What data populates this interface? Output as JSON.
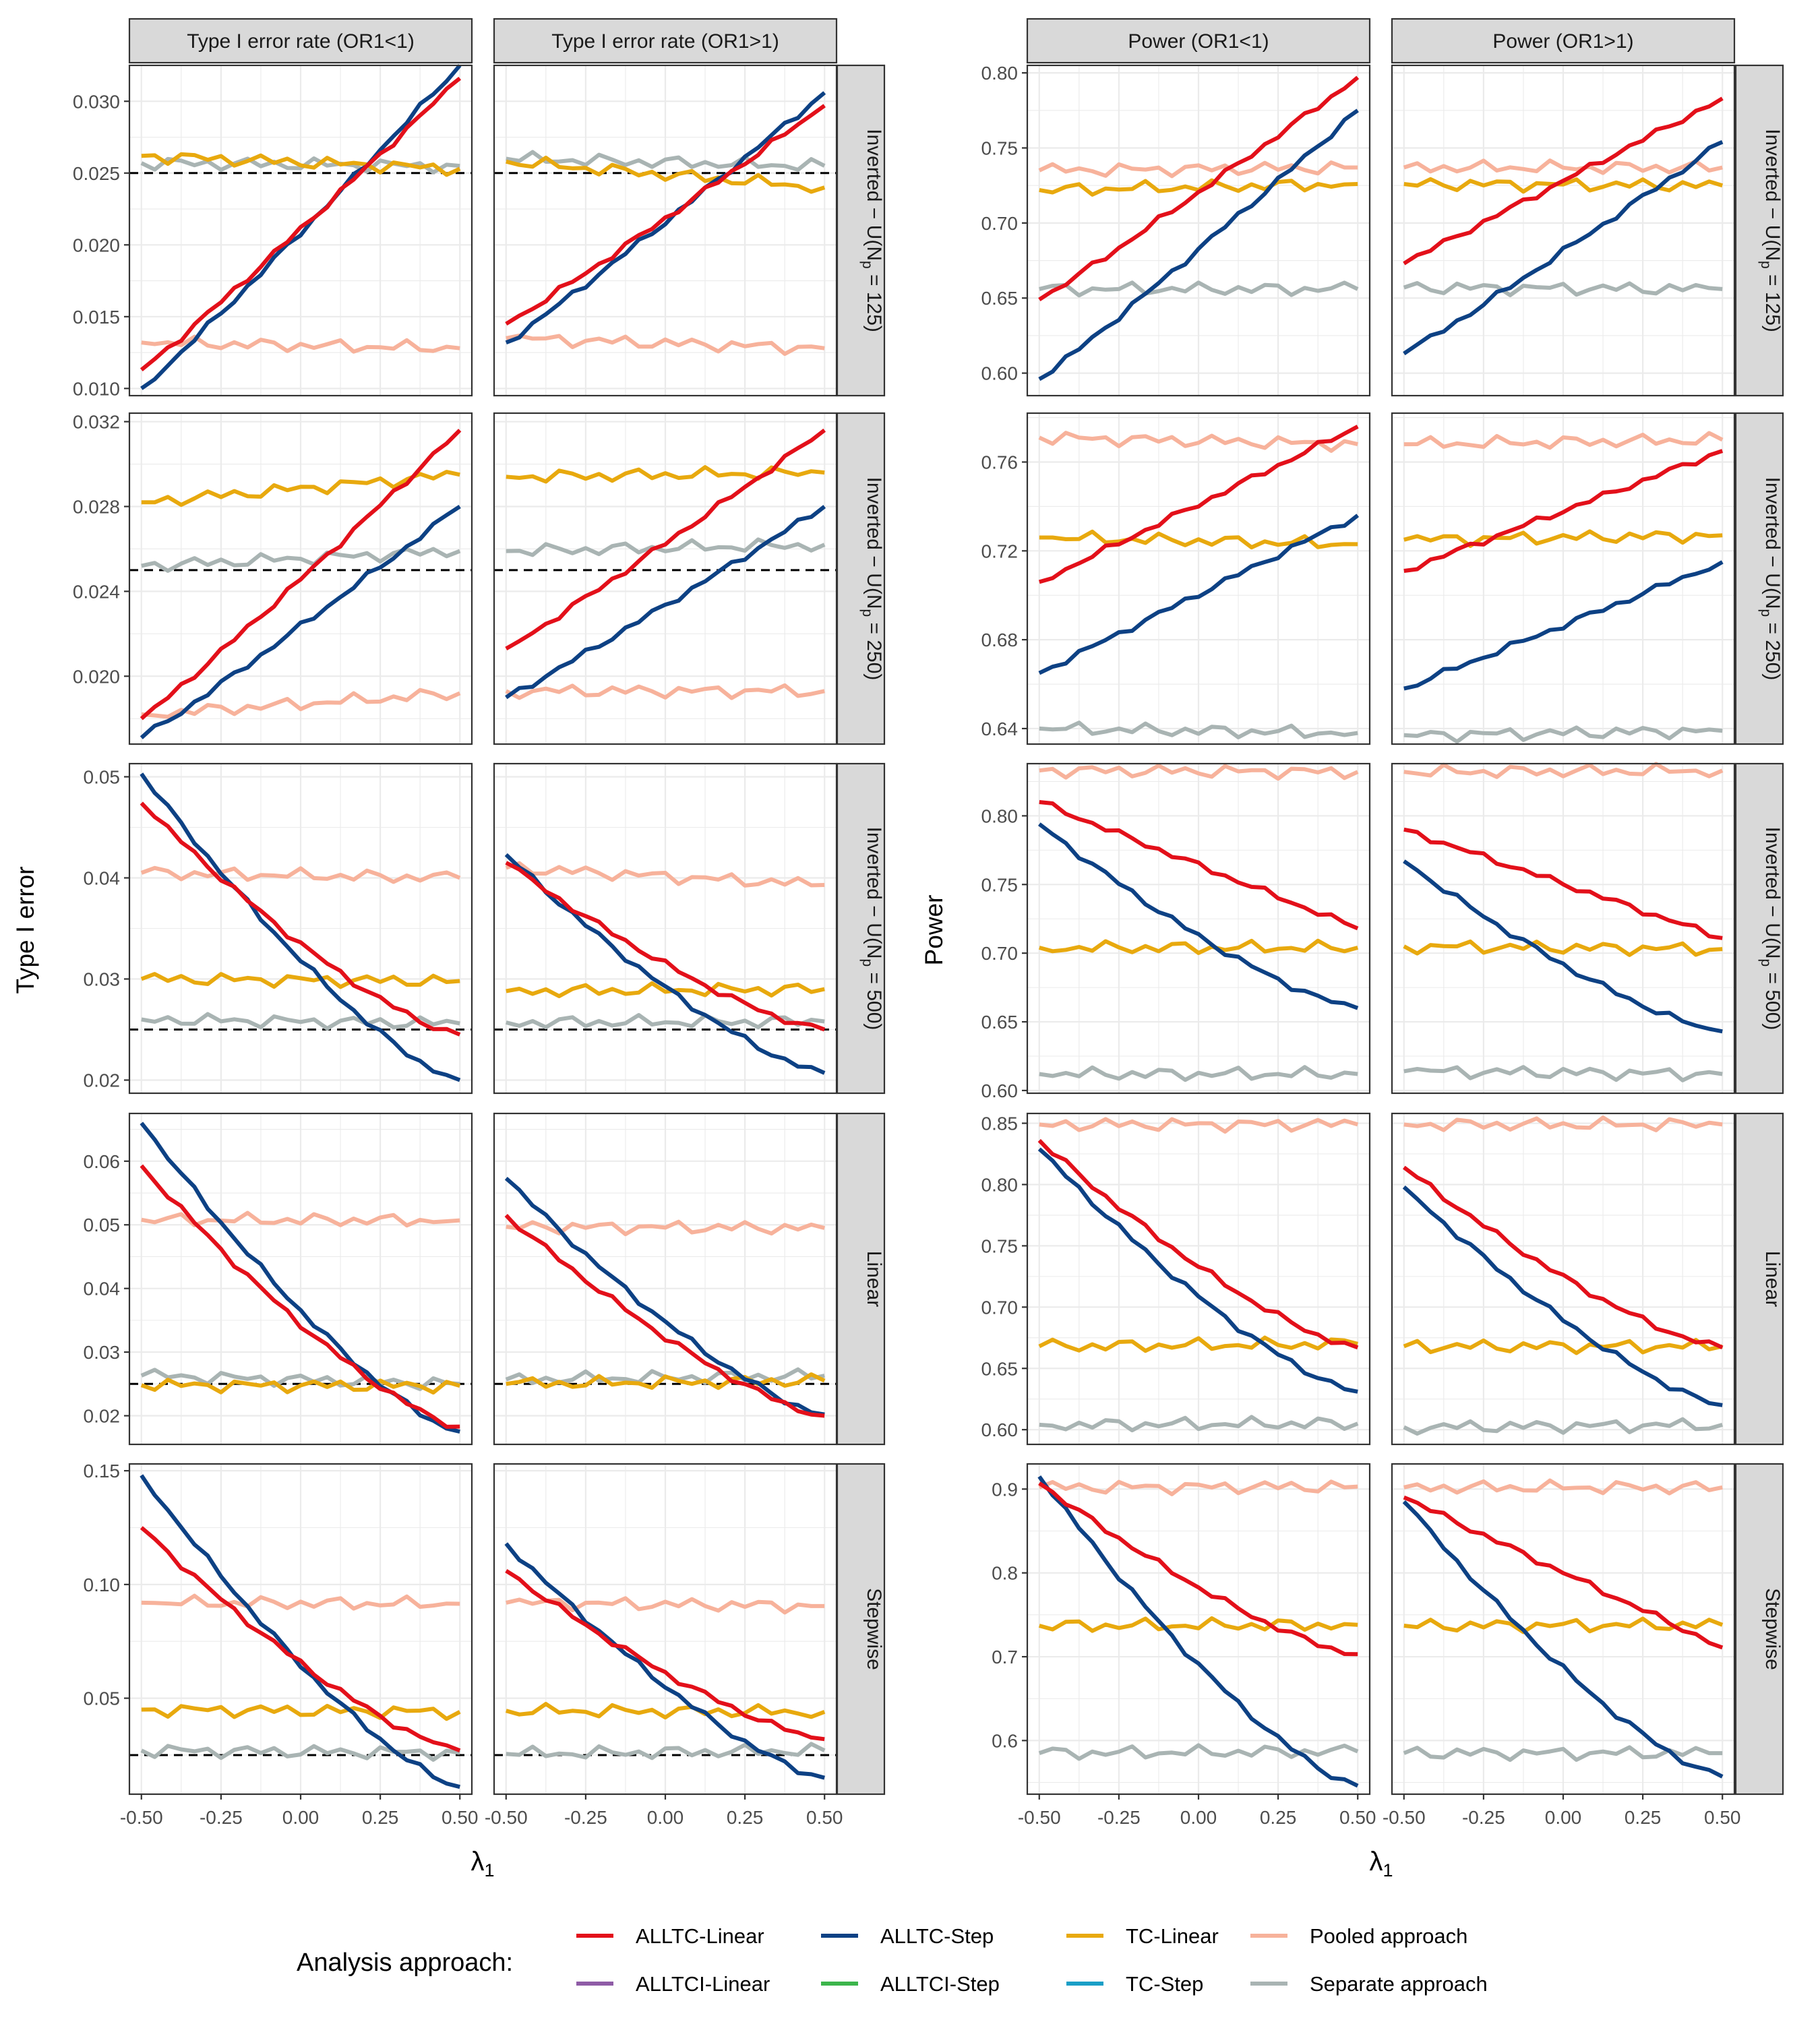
{
  "figure": {
    "y_titles": [
      "Type I error",
      "Power"
    ],
    "x_title": "λ",
    "x_title_sub": "1",
    "legend_title": "Analysis approach:",
    "x_ticks": [
      "-0.50",
      "-0.25",
      "0.00",
      "0.25",
      "0.50"
    ],
    "row_strips": [
      {
        "main": "Inverted − U(N",
        "sub": "p",
        "tail": " = 125)"
      },
      {
        "main": "Inverted − U(N",
        "sub": "p",
        "tail": " = 250)"
      },
      {
        "main": "Inverted − U(N",
        "sub": "p",
        "tail": " = 500)"
      },
      {
        "main": "Linear",
        "sub": "",
        "tail": ""
      },
      {
        "main": "Stepwise",
        "sub": "",
        "tail": ""
      }
    ]
  },
  "legend": [
    {
      "label": "ALLTC-Linear",
      "color": "#e3101a"
    },
    {
      "label": "ALLTC-Step",
      "color": "#0d4184"
    },
    {
      "label": "TC-Linear",
      "color": "#e8a90e"
    },
    {
      "label": "Pooled approach",
      "color": "#f7b29b"
    },
    {
      "label": "ALLTCI-Linear",
      "color": "#8f5ca6"
    },
    {
      "label": "ALLTCI-Step",
      "color": "#3cb54b"
    },
    {
      "label": "TC-Step",
      "color": "#1a9fc7"
    },
    {
      "label": "Separate approach",
      "color": "#a9b4b3"
    }
  ],
  "chart_data": [
    {
      "type": "line",
      "title": "Type I error rate (OR1<1)",
      "row": "Inverted − U(Np = 125)",
      "xlabel": "λ1",
      "ylabel": "Type I error",
      "xlim": [
        -0.5,
        0.5
      ],
      "ylim": [
        0.0095,
        0.0325
      ],
      "yticks": [
        "0.010",
        "0.015",
        "0.020",
        "0.025",
        "0.030"
      ],
      "reference_line": 0.025,
      "series": [
        {
          "name": "ALLTC-Linear",
          "start": 0.0113,
          "end": 0.0316
        },
        {
          "name": "ALLTC-Step",
          "start": 0.01,
          "end": 0.0325
        },
        {
          "name": "TC-Linear",
          "start": 0.0262,
          "end": 0.0253
        },
        {
          "name": "Pooled approach",
          "start": 0.0132,
          "end": 0.0128
        },
        {
          "name": "Separate approach",
          "start": 0.0257,
          "end": 0.0255
        }
      ]
    },
    {
      "type": "line",
      "title": "Type I error rate (OR1>1)",
      "row": "Inverted − U(Np = 125)",
      "xlim": [
        -0.5,
        0.5
      ],
      "ylim": [
        0.0095,
        0.0325
      ],
      "yticks": [
        "0.010",
        "0.015",
        "0.020",
        "0.025",
        "0.030"
      ],
      "reference_line": 0.025,
      "series": [
        {
          "name": "ALLTC-Linear",
          "start": 0.0145,
          "end": 0.0297
        },
        {
          "name": "ALLTC-Step",
          "start": 0.0132,
          "end": 0.0306
        },
        {
          "name": "TC-Linear",
          "start": 0.0258,
          "end": 0.024
        },
        {
          "name": "Pooled approach",
          "start": 0.0135,
          "end": 0.0128
        },
        {
          "name": "Separate approach",
          "start": 0.026,
          "end": 0.0255
        }
      ]
    },
    {
      "type": "line",
      "title": "Power (OR1<1)",
      "row": "Inverted − U(Np = 125)",
      "xlabel": "λ1",
      "ylabel": "Power",
      "xlim": [
        -0.5,
        0.5
      ],
      "ylim": [
        0.585,
        0.805
      ],
      "yticks": [
        "0.60",
        "0.65",
        "0.70",
        "0.75",
        "0.80"
      ],
      "series": [
        {
          "name": "ALLTC-Linear",
          "start": 0.649,
          "end": 0.797
        },
        {
          "name": "ALLTC-Step",
          "start": 0.596,
          "end": 0.775
        },
        {
          "name": "TC-Linear",
          "start": 0.722,
          "end": 0.726
        },
        {
          "name": "Pooled approach",
          "start": 0.735,
          "end": 0.737
        },
        {
          "name": "Separate approach",
          "start": 0.656,
          "end": 0.656
        }
      ]
    },
    {
      "type": "line",
      "title": "Power (OR1>1)",
      "row": "Inverted − U(Np = 125)",
      "xlim": [
        -0.5,
        0.5
      ],
      "ylim": [
        0.585,
        0.805
      ],
      "yticks": [
        "0.60",
        "0.65",
        "0.70",
        "0.75",
        "0.80"
      ],
      "series": [
        {
          "name": "ALLTC-Linear",
          "start": 0.673,
          "end": 0.783
        },
        {
          "name": "ALLTC-Step",
          "start": 0.613,
          "end": 0.754
        },
        {
          "name": "TC-Linear",
          "start": 0.726,
          "end": 0.725
        },
        {
          "name": "Pooled approach",
          "start": 0.737,
          "end": 0.737
        },
        {
          "name": "Separate approach",
          "start": 0.657,
          "end": 0.656
        }
      ]
    },
    {
      "type": "line",
      "title": "Type I error rate (OR1<1)",
      "row": "Inverted − U(Np = 250)",
      "xlim": [
        -0.5,
        0.5
      ],
      "ylim": [
        0.0168,
        0.0324
      ],
      "yticks": [
        "0.020",
        "0.024",
        "0.028",
        "0.032"
      ],
      "reference_line": 0.025,
      "series": [
        {
          "name": "ALLTC-Linear",
          "start": 0.018,
          "end": 0.0316
        },
        {
          "name": "ALLTC-Step",
          "start": 0.0171,
          "end": 0.028
        },
        {
          "name": "TC-Linear",
          "start": 0.0282,
          "end": 0.0295
        },
        {
          "name": "Pooled approach",
          "start": 0.0182,
          "end": 0.0192
        },
        {
          "name": "Separate approach",
          "start": 0.0252,
          "end": 0.0259
        }
      ]
    },
    {
      "type": "line",
      "title": "Type I error rate (OR1>1)",
      "row": "Inverted − U(Np = 250)",
      "xlim": [
        -0.5,
        0.5
      ],
      "ylim": [
        0.0168,
        0.0324
      ],
      "yticks": [
        "0.020",
        "0.024",
        "0.028",
        "0.032"
      ],
      "reference_line": 0.025,
      "series": [
        {
          "name": "ALLTC-Linear",
          "start": 0.0213,
          "end": 0.0316
        },
        {
          "name": "ALLTC-Step",
          "start": 0.019,
          "end": 0.028
        },
        {
          "name": "TC-Linear",
          "start": 0.0294,
          "end": 0.0296
        },
        {
          "name": "Pooled approach",
          "start": 0.0193,
          "end": 0.0193
        },
        {
          "name": "Separate approach",
          "start": 0.0259,
          "end": 0.0262
        }
      ]
    },
    {
      "type": "line",
      "title": "Power (OR1<1)",
      "row": "Inverted − U(Np = 250)",
      "xlim": [
        -0.5,
        0.5
      ],
      "ylim": [
        0.633,
        0.782
      ],
      "yticks": [
        "0.64",
        "0.68",
        "0.72",
        "0.76"
      ],
      "series": [
        {
          "name": "ALLTC-Linear",
          "start": 0.706,
          "end": 0.776
        },
        {
          "name": "ALLTC-Step",
          "start": 0.665,
          "end": 0.736
        },
        {
          "name": "TC-Linear",
          "start": 0.726,
          "end": 0.723
        },
        {
          "name": "Pooled approach",
          "start": 0.771,
          "end": 0.768
        },
        {
          "name": "Separate approach",
          "start": 0.64,
          "end": 0.638
        }
      ]
    },
    {
      "type": "line",
      "title": "Power (OR1>1)",
      "row": "Inverted − U(Np = 250)",
      "xlim": [
        -0.5,
        0.5
      ],
      "ylim": [
        0.633,
        0.782
      ],
      "yticks": [
        "0.64",
        "0.68",
        "0.72",
        "0.76"
      ],
      "series": [
        {
          "name": "ALLTC-Linear",
          "start": 0.711,
          "end": 0.765
        },
        {
          "name": "ALLTC-Step",
          "start": 0.658,
          "end": 0.715
        },
        {
          "name": "TC-Linear",
          "start": 0.725,
          "end": 0.727
        },
        {
          "name": "Pooled approach",
          "start": 0.768,
          "end": 0.77
        },
        {
          "name": "Separate approach",
          "start": 0.637,
          "end": 0.639
        }
      ]
    },
    {
      "type": "line",
      "title": "Type I error rate (OR1<1)",
      "row": "Inverted − U(Np = 500)",
      "xlim": [
        -0.5,
        0.5
      ],
      "ylim": [
        0.0187,
        0.0513
      ],
      "yticks": [
        "0.02",
        "0.03",
        "0.04",
        "0.05"
      ],
      "reference_line": 0.025,
      "series": [
        {
          "name": "ALLTC-Linear",
          "start": 0.0474,
          "end": 0.0245
        },
        {
          "name": "ALLTC-Step",
          "start": 0.0503,
          "end": 0.02
        },
        {
          "name": "TC-Linear",
          "start": 0.03,
          "end": 0.0298
        },
        {
          "name": "Pooled approach",
          "start": 0.0405,
          "end": 0.04
        },
        {
          "name": "Separate approach",
          "start": 0.026,
          "end": 0.0256
        }
      ]
    },
    {
      "type": "line",
      "title": "Type I error rate (OR1>1)",
      "row": "Inverted − U(Np = 500)",
      "xlim": [
        -0.5,
        0.5
      ],
      "ylim": [
        0.0187,
        0.0513
      ],
      "yticks": [
        "0.02",
        "0.03",
        "0.04",
        "0.05"
      ],
      "reference_line": 0.025,
      "series": [
        {
          "name": "ALLTC-Linear",
          "start": 0.0415,
          "end": 0.025
        },
        {
          "name": "ALLTC-Step",
          "start": 0.0423,
          "end": 0.0207
        },
        {
          "name": "TC-Linear",
          "start": 0.0288,
          "end": 0.029
        },
        {
          "name": "Pooled approach",
          "start": 0.041,
          "end": 0.0393
        },
        {
          "name": "Separate approach",
          "start": 0.0257,
          "end": 0.0258
        }
      ]
    },
    {
      "type": "line",
      "title": "Power (OR1<1)",
      "row": "Inverted − U(Np = 500)",
      "xlim": [
        -0.5,
        0.5
      ],
      "ylim": [
        0.598,
        0.838
      ],
      "yticks": [
        "0.60",
        "0.65",
        "0.70",
        "0.75",
        "0.80"
      ],
      "series": [
        {
          "name": "ALLTC-Linear",
          "start": 0.81,
          "end": 0.718
        },
        {
          "name": "ALLTC-Step",
          "start": 0.794,
          "end": 0.66
        },
        {
          "name": "TC-Linear",
          "start": 0.704,
          "end": 0.704
        },
        {
          "name": "Pooled approach",
          "start": 0.833,
          "end": 0.832
        },
        {
          "name": "Separate approach",
          "start": 0.612,
          "end": 0.612
        }
      ]
    },
    {
      "type": "line",
      "title": "Power (OR1>1)",
      "row": "Inverted − U(Np = 500)",
      "xlim": [
        -0.5,
        0.5
      ],
      "ylim": [
        0.598,
        0.838
      ],
      "yticks": [
        "0.60",
        "0.65",
        "0.70",
        "0.75",
        "0.80"
      ],
      "series": [
        {
          "name": "ALLTC-Linear",
          "start": 0.79,
          "end": 0.711
        },
        {
          "name": "ALLTC-Step",
          "start": 0.767,
          "end": 0.643
        },
        {
          "name": "TC-Linear",
          "start": 0.705,
          "end": 0.703
        },
        {
          "name": "Pooled approach",
          "start": 0.832,
          "end": 0.833
        },
        {
          "name": "Separate approach",
          "start": 0.614,
          "end": 0.612
        }
      ]
    },
    {
      "type": "line",
      "title": "Type I error rate (OR1<1)",
      "row": "Linear",
      "xlim": [
        -0.5,
        0.5
      ],
      "ylim": [
        0.0155,
        0.0675
      ],
      "yticks": [
        "0.02",
        "0.03",
        "0.04",
        "0.05",
        "0.06"
      ],
      "reference_line": 0.025,
      "series": [
        {
          "name": "ALLTC-Linear",
          "start": 0.0593,
          "end": 0.0183
        },
        {
          "name": "ALLTC-Step",
          "start": 0.066,
          "end": 0.0175
        },
        {
          "name": "TC-Linear",
          "start": 0.0248,
          "end": 0.0247
        },
        {
          "name": "Pooled approach",
          "start": 0.0508,
          "end": 0.0507
        },
        {
          "name": "Separate approach",
          "start": 0.0263,
          "end": 0.025
        }
      ]
    },
    {
      "type": "line",
      "title": "Type I error rate (OR1>1)",
      "row": "Linear",
      "xlim": [
        -0.5,
        0.5
      ],
      "ylim": [
        0.0155,
        0.0675
      ],
      "yticks": [
        "0.02",
        "0.03",
        "0.04",
        "0.05",
        "0.06"
      ],
      "reference_line": 0.025,
      "series": [
        {
          "name": "ALLTC-Linear",
          "start": 0.0515,
          "end": 0.02
        },
        {
          "name": "ALLTC-Step",
          "start": 0.0573,
          "end": 0.0202
        },
        {
          "name": "TC-Linear",
          "start": 0.025,
          "end": 0.0255
        },
        {
          "name": "Pooled approach",
          "start": 0.0497,
          "end": 0.0495
        },
        {
          "name": "Separate approach",
          "start": 0.0257,
          "end": 0.0263
        }
      ]
    },
    {
      "type": "line",
      "title": "Power (OR1<1)",
      "row": "Linear",
      "xlim": [
        -0.5,
        0.5
      ],
      "ylim": [
        0.588,
        0.858
      ],
      "yticks": [
        "0.60",
        "0.65",
        "0.70",
        "0.75",
        "0.80",
        "0.85"
      ],
      "series": [
        {
          "name": "ALLTC-Linear",
          "start": 0.836,
          "end": 0.667
        },
        {
          "name": "ALLTC-Step",
          "start": 0.829,
          "end": 0.631
        },
        {
          "name": "TC-Linear",
          "start": 0.668,
          "end": 0.67
        },
        {
          "name": "Pooled approach",
          "start": 0.849,
          "end": 0.849
        },
        {
          "name": "Separate approach",
          "start": 0.604,
          "end": 0.605
        }
      ]
    },
    {
      "type": "line",
      "title": "Power (OR1>1)",
      "row": "Linear",
      "xlim": [
        -0.5,
        0.5
      ],
      "ylim": [
        0.588,
        0.858
      ],
      "yticks": [
        "0.60",
        "0.65",
        "0.70",
        "0.75",
        "0.80",
        "0.85"
      ],
      "series": [
        {
          "name": "ALLTC-Linear",
          "start": 0.814,
          "end": 0.667
        },
        {
          "name": "ALLTC-Step",
          "start": 0.798,
          "end": 0.62
        },
        {
          "name": "TC-Linear",
          "start": 0.668,
          "end": 0.668
        },
        {
          "name": "Pooled approach",
          "start": 0.849,
          "end": 0.849
        },
        {
          "name": "Separate approach",
          "start": 0.602,
          "end": 0.604
        }
      ]
    },
    {
      "type": "line",
      "title": "Type I error rate (OR1<1)",
      "row": "Stepwise",
      "xlim": [
        -0.5,
        0.5
      ],
      "ylim": [
        0.0078,
        0.153
      ],
      "yticks": [
        "0.05",
        "0.10",
        "0.15"
      ],
      "reference_line": 0.025,
      "series": [
        {
          "name": "ALLTC-Linear",
          "start": 0.125,
          "end": 0.027
        },
        {
          "name": "ALLTC-Step",
          "start": 0.148,
          "end": 0.011
        },
        {
          "name": "TC-Linear",
          "start": 0.045,
          "end": 0.044
        },
        {
          "name": "Pooled approach",
          "start": 0.092,
          "end": 0.0915
        },
        {
          "name": "Separate approach",
          "start": 0.027,
          "end": 0.026
        }
      ]
    },
    {
      "type": "line",
      "title": "Type I error rate (OR1>1)",
      "row": "Stepwise",
      "xlim": [
        -0.5,
        0.5
      ],
      "ylim": [
        0.0078,
        0.153
      ],
      "yticks": [
        "0.05",
        "0.10",
        "0.15"
      ],
      "reference_line": 0.025,
      "series": [
        {
          "name": "ALLTC-Linear",
          "start": 0.106,
          "end": 0.032
        },
        {
          "name": "ALLTC-Step",
          "start": 0.118,
          "end": 0.015
        },
        {
          "name": "TC-Linear",
          "start": 0.0445,
          "end": 0.044
        },
        {
          "name": "Pooled approach",
          "start": 0.092,
          "end": 0.0905
        },
        {
          "name": "Separate approach",
          "start": 0.0255,
          "end": 0.027
        }
      ]
    },
    {
      "type": "line",
      "title": "Power (OR1<1)",
      "row": "Stepwise",
      "xlim": [
        -0.5,
        0.5
      ],
      "ylim": [
        0.536,
        0.93
      ],
      "yticks": [
        "0.6",
        "0.7",
        "0.8",
        "0.9"
      ],
      "series": [
        {
          "name": "ALLTC-Linear",
          "start": 0.907,
          "end": 0.703
        },
        {
          "name": "ALLTC-Step",
          "start": 0.915,
          "end": 0.546
        },
        {
          "name": "TC-Linear",
          "start": 0.737,
          "end": 0.738
        },
        {
          "name": "Pooled approach",
          "start": 0.902,
          "end": 0.903
        },
        {
          "name": "Separate approach",
          "start": 0.585,
          "end": 0.587
        }
      ]
    },
    {
      "type": "line",
      "title": "Power (OR1>1)",
      "row": "Stepwise",
      "xlim": [
        -0.5,
        0.5
      ],
      "ylim": [
        0.536,
        0.93
      ],
      "yticks": [
        "0.6",
        "0.7",
        "0.8",
        "0.9"
      ],
      "series": [
        {
          "name": "ALLTC-Linear",
          "start": 0.89,
          "end": 0.711
        },
        {
          "name": "ALLTC-Step",
          "start": 0.885,
          "end": 0.557
        },
        {
          "name": "TC-Linear",
          "start": 0.737,
          "end": 0.738
        },
        {
          "name": "Pooled approach",
          "start": 0.902,
          "end": 0.902
        },
        {
          "name": "Separate approach",
          "start": 0.585,
          "end": 0.585
        }
      ]
    }
  ]
}
